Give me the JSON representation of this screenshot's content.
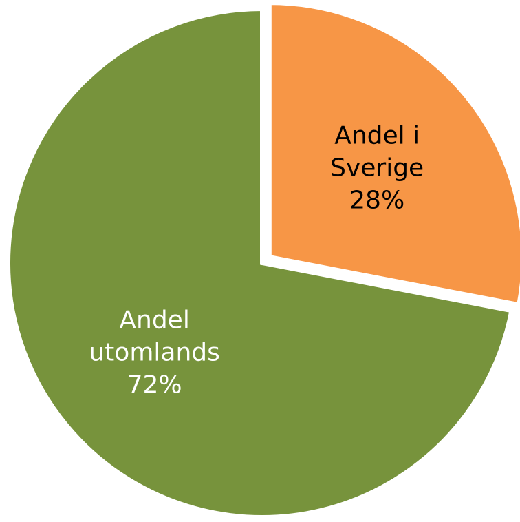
{
  "chart_data": {
    "type": "pie",
    "slices": [
      {
        "label_lines": [
          "Andel i",
          "Sverige"
        ],
        "percent_label": "28%",
        "value": 28,
        "color": "#F79646",
        "label_color": "#000000",
        "exploded": true
      },
      {
        "label_lines": [
          "Andel",
          "utomlands"
        ],
        "percent_label": "72%",
        "value": 72,
        "color": "#77933C",
        "label_color": "#FFFFFF",
        "exploded": false
      }
    ],
    "start_angle_deg": 0,
    "direction": "clockwise",
    "title": "",
    "legend": "none"
  }
}
